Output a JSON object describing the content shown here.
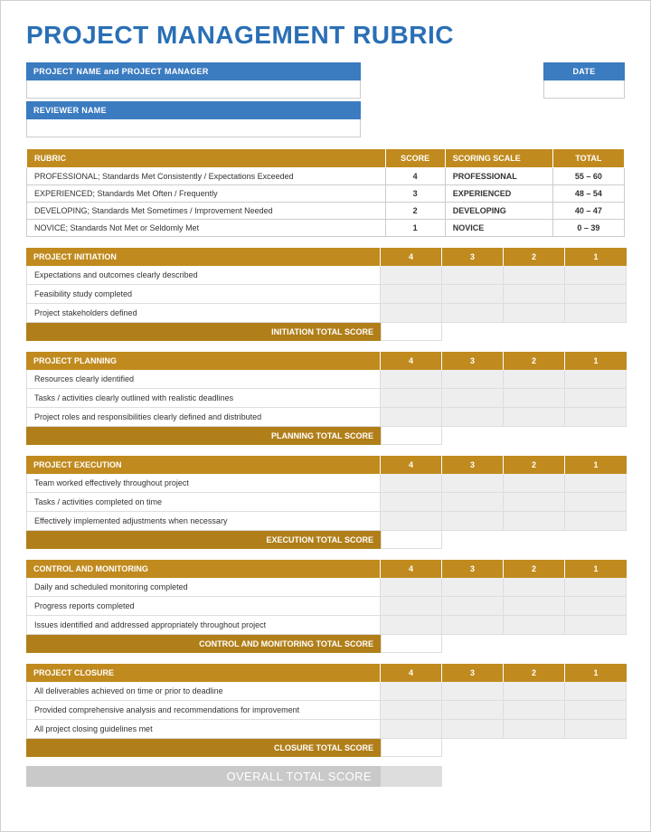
{
  "colors": {
    "title": "#2a6fb5",
    "blue_bar": "#3b7bc0",
    "gold": "#c08a1e",
    "gold_total": "#b07f1a"
  },
  "title": "PROJECT MANAGEMENT RUBRIC",
  "header": {
    "project_label": "PROJECT NAME and PROJECT MANAGER",
    "date_label": "DATE",
    "reviewer_label": "REVIEWER NAME"
  },
  "rubric": {
    "headers": {
      "rubric": "RUBRIC",
      "score": "SCORE",
      "scale": "SCORING SCALE",
      "total": "TOTAL"
    },
    "col_widths": {
      "rubric": "60%",
      "score": "10%",
      "scale": "18%",
      "total": "12%"
    },
    "rows": [
      {
        "desc": "PROFESSIONAL; Standards Met Consistently / Expectations Exceeded",
        "score": "4",
        "scale": "PROFESSIONAL",
        "total": "55 – 60"
      },
      {
        "desc": "EXPERIENCED; Standards Met Often / Frequently",
        "score": "3",
        "scale": "EXPERIENCED",
        "total": "48 – 54"
      },
      {
        "desc": "DEVELOPING; Standards Met Sometimes / Improvement Needed",
        "score": "2",
        "scale": "DEVELOPING",
        "total": "40 – 47"
      },
      {
        "desc": "NOVICE; Standards Not Met or Seldomly Met",
        "score": "1",
        "scale": "NOVICE",
        "total": "0 – 39"
      }
    ]
  },
  "score_cols": [
    "4",
    "3",
    "2",
    "1"
  ],
  "sections": [
    {
      "name": "PROJECT INITIATION",
      "total_label": "INITIATION TOTAL SCORE",
      "rows": [
        "Expectations and outcomes clearly described",
        "Feasibility study completed",
        "Project stakeholders defined"
      ]
    },
    {
      "name": "PROJECT PLANNING",
      "total_label": "PLANNING TOTAL SCORE",
      "rows": [
        "Resources clearly identified",
        "Tasks / activities clearly outlined with realistic deadlines",
        "Project roles and responsibilities clearly defined and distributed"
      ]
    },
    {
      "name": "PROJECT EXECUTION",
      "total_label": "EXECUTION TOTAL SCORE",
      "rows": [
        "Team worked effectively throughout project",
        "Tasks / activities completed on time",
        "Effectively implemented adjustments when necessary"
      ]
    },
    {
      "name": "CONTROL AND MONITORING",
      "total_label": "CONTROL AND MONITORING TOTAL SCORE",
      "rows": [
        "Daily and scheduled monitoring completed",
        "Progress reports completed",
        "Issues identified and addressed appropriately throughout project"
      ]
    },
    {
      "name": "PROJECT CLOSURE",
      "total_label": "CLOSURE TOTAL SCORE",
      "rows": [
        "All deliverables achieved on time or prior to deadline",
        "Provided comprehensive analysis and recommendations for improvement",
        "All project closing guidelines met"
      ]
    }
  ],
  "overall_label": "OVERALL TOTAL SCORE"
}
